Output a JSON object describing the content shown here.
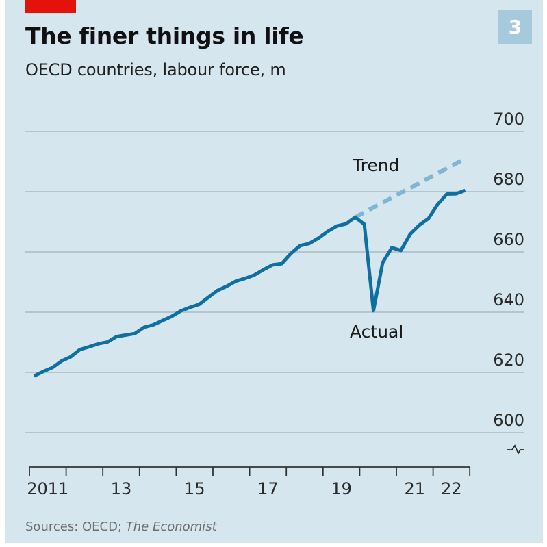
{
  "header": {
    "title": "The finer things in life",
    "subtitle": "OECD countries, labour force, m",
    "badge": "3"
  },
  "footer": {
    "source_prefix": "Sources: OECD; ",
    "source_italic": "The Economist"
  },
  "colors": {
    "background": "#d6e6ef",
    "actual": "#0f6fa0",
    "trend": "#7fb6d3",
    "grid": "#aab8c2",
    "brand_red": "#e3120b",
    "badge": "#a7c9dc"
  },
  "chart_data": {
    "type": "line",
    "title": "The finer things in life",
    "subtitle": "OECD countries, labour force, m",
    "xlabel": "",
    "ylabel": "",
    "ylim": [
      595,
      700
    ],
    "xlim": [
      2011,
      2023
    ],
    "y_ticks": [
      700,
      680,
      660,
      640,
      620,
      600
    ],
    "y_axis_break": true,
    "x_ticks": [
      {
        "year": 2011,
        "label": "2011"
      },
      {
        "year": 2012,
        "label": ""
      },
      {
        "year": 2013,
        "label": "13"
      },
      {
        "year": 2014,
        "label": ""
      },
      {
        "year": 2015,
        "label": "15"
      },
      {
        "year": 2016,
        "label": ""
      },
      {
        "year": 2017,
        "label": "17"
      },
      {
        "year": 2018,
        "label": ""
      },
      {
        "year": 2019,
        "label": "19"
      },
      {
        "year": 2020,
        "label": ""
      },
      {
        "year": 2021,
        "label": "21"
      },
      {
        "year": 2022,
        "label": "22"
      }
    ],
    "grid": true,
    "legend": "none",
    "series": [
      {
        "name": "Actual",
        "style": "solid",
        "x": [
          2011.125,
          2011.375,
          2011.625,
          2011.875,
          2012.125,
          2012.375,
          2012.625,
          2012.875,
          2013.125,
          2013.375,
          2013.625,
          2013.875,
          2014.125,
          2014.375,
          2014.625,
          2014.875,
          2015.125,
          2015.375,
          2015.625,
          2015.875,
          2016.125,
          2016.375,
          2016.625,
          2016.875,
          2017.125,
          2017.375,
          2017.625,
          2017.875,
          2018.125,
          2018.375,
          2018.625,
          2018.875,
          2019.125,
          2019.375,
          2019.625,
          2019.875,
          2020.125,
          2020.375,
          2020.625,
          2020.875,
          2021.125,
          2021.375,
          2021.625,
          2021.875,
          2022.125,
          2022.375,
          2022.625,
          2022.875
        ],
        "values": [
          618.8,
          620.3,
          621.6,
          623.8,
          625.2,
          627.6,
          628.5,
          629.5,
          630.1,
          631.9,
          632.4,
          632.9,
          635.0,
          635.8,
          637.2,
          638.6,
          640.4,
          641.6,
          642.6,
          644.9,
          647.2,
          648.6,
          650.3,
          651.2,
          652.3,
          654.1,
          655.7,
          656.1,
          659.5,
          662.1,
          662.8,
          664.6,
          666.8,
          668.6,
          669.3,
          671.5,
          669.2,
          640.5,
          656.4,
          661.4,
          660.5,
          665.9,
          668.9,
          671.1,
          675.8,
          679.2,
          679.3,
          680.4
        ]
      },
      {
        "name": "Trend",
        "style": "dashed",
        "x": [
          2019.875,
          2022.875
        ],
        "values": [
          671.5,
          691.0
        ]
      }
    ],
    "annotations": [
      {
        "text": "Trend",
        "series": "Trend"
      },
      {
        "text": "Actual",
        "series": "Actual"
      }
    ]
  }
}
